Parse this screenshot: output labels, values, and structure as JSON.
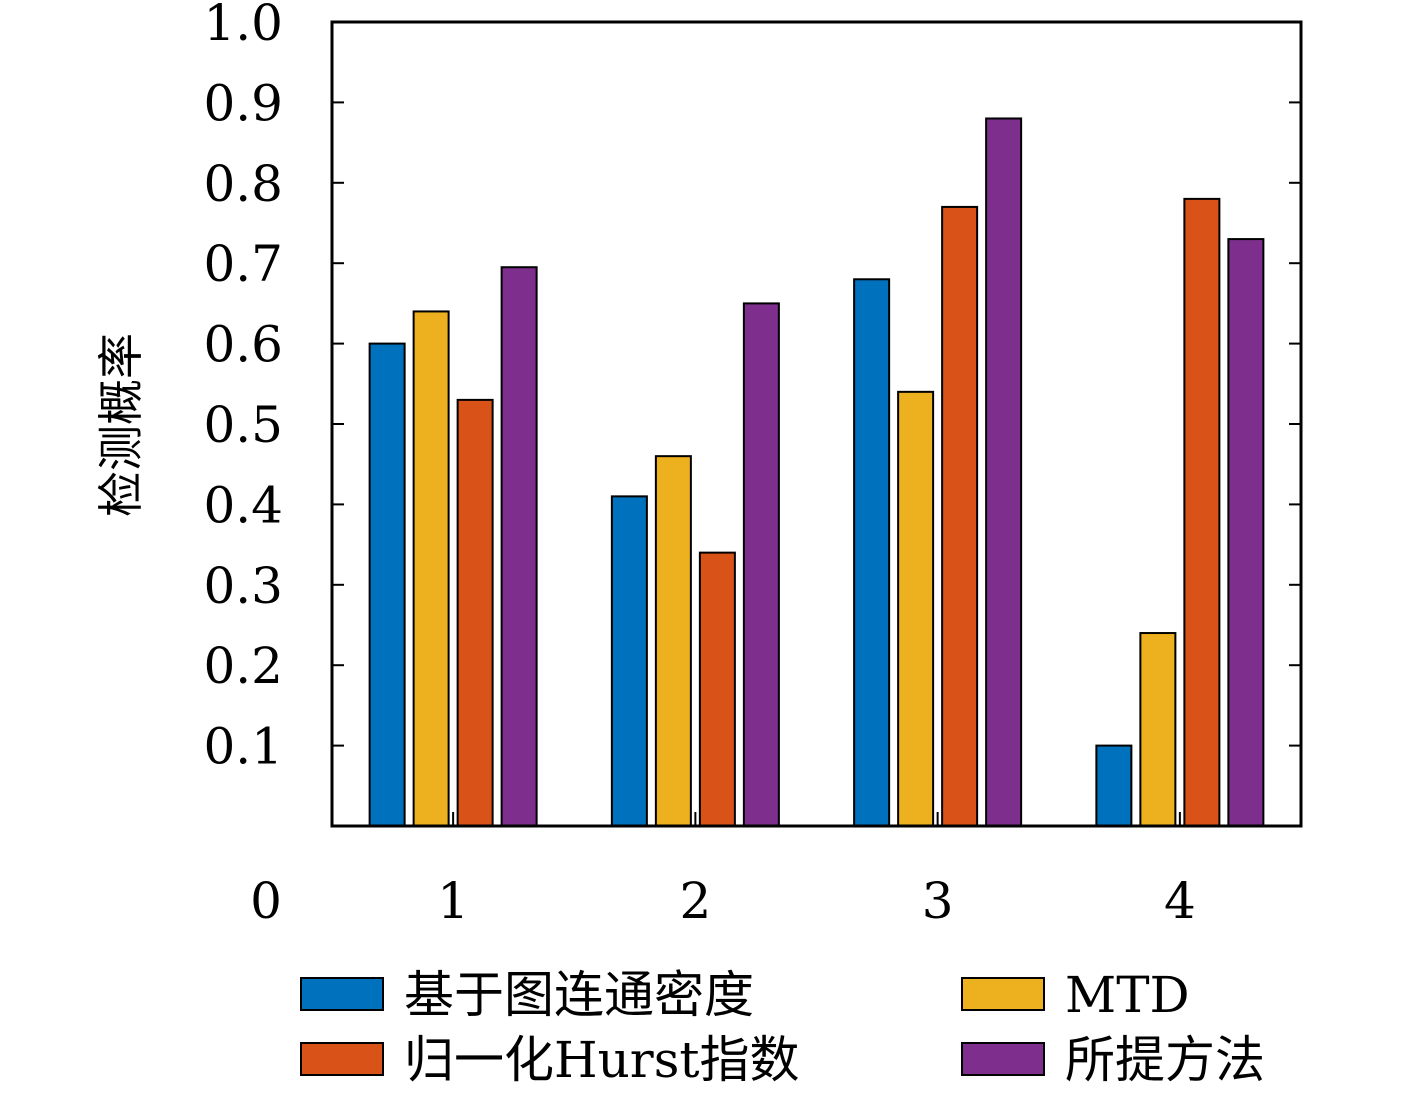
{
  "chart_data": {
    "type": "bar",
    "title": "",
    "xlabel": "",
    "ylabel": "检测概率",
    "categories": [
      "1",
      "2",
      "3",
      "4"
    ],
    "ylim": [
      0,
      1.0
    ],
    "y_ticks": [
      "0.1",
      "0.2",
      "0.3",
      "0.4",
      "0.5",
      "0.6",
      "0.7",
      "0.8",
      "0.9",
      "1.0"
    ],
    "y_zero_label": "0",
    "grid": false,
    "legend_position": "bottom",
    "series": [
      {
        "name": "基于图连通密度",
        "color": "#0072BD",
        "values": [
          0.6,
          0.41,
          0.68,
          0.1
        ]
      },
      {
        "name": "MTD",
        "color": "#EDB120",
        "values": [
          0.64,
          0.46,
          0.54,
          0.24
        ]
      },
      {
        "name": "归一化Hurst指数",
        "color": "#D95319",
        "values": [
          0.53,
          0.34,
          0.77,
          0.78
        ]
      },
      {
        "name": "所提方法",
        "color": "#7E2F8E",
        "values": [
          0.695,
          0.65,
          0.88,
          0.73
        ]
      }
    ]
  }
}
